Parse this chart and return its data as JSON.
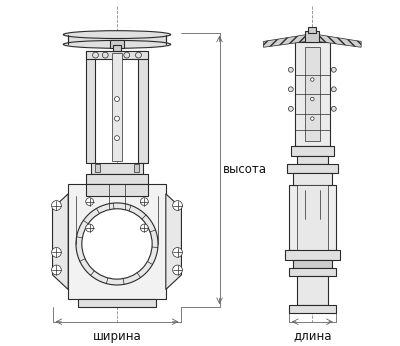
{
  "bg_color": "#ffffff",
  "lc": "#2a2a2a",
  "lc_thin": "#444444",
  "lc_dim": "#666666",
  "fc_body": "#f5f5f5",
  "fc_dark": "#cccccc",
  "fc_mid": "#e0e0e0",
  "label_shirina": "ширина",
  "label_vysota": "высота",
  "label_dlina": "длина",
  "label_fontsize": 8.5,
  "figsize": [
    4.0,
    3.46
  ],
  "dpi": 100
}
